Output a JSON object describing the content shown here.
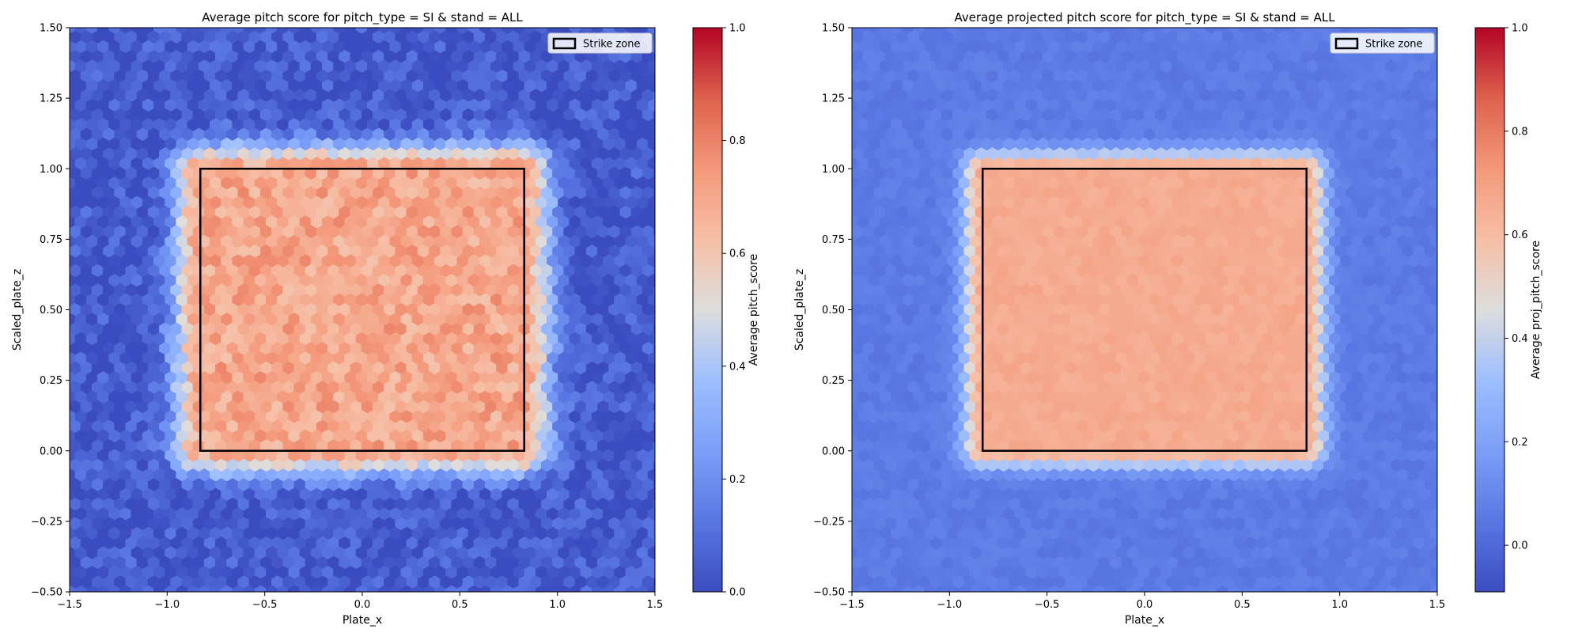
{
  "chart_data": [
    {
      "type": "heatmap",
      "style": "hexbin",
      "title": "Average pitch score for pitch_type = SI & stand = ALL",
      "xlabel": "Plate_x",
      "ylabel": "Scaled_plate_z",
      "xlim": [
        -1.5,
        1.5
      ],
      "ylim": [
        -0.5,
        1.5
      ],
      "xticks": [
        -1.5,
        -1.0,
        -0.5,
        0.0,
        0.5,
        1.0,
        1.5
      ],
      "xtick_labels": [
        "−1.5",
        "−1.0",
        "−0.5",
        "0.0",
        "0.5",
        "1.0",
        "1.5"
      ],
      "yticks": [
        -0.5,
        -0.25,
        0.0,
        0.25,
        0.5,
        0.75,
        1.0,
        1.25,
        1.5
      ],
      "ytick_labels": [
        "−0.50",
        "−0.25",
        "0.00",
        "0.25",
        "0.50",
        "0.75",
        "1.00",
        "1.25",
        "1.50"
      ],
      "colormap": "coolwarm",
      "colorbar": {
        "label": "Average pitch_score",
        "range": [
          0.0,
          1.0
        ],
        "ticks": [
          0.0,
          0.2,
          0.4,
          0.6,
          0.8,
          1.0
        ],
        "tick_labels": [
          "0.0",
          "0.2",
          "0.4",
          "0.6",
          "0.8",
          "1.0"
        ]
      },
      "strike_zone": {
        "x": [
          -0.83,
          0.83
        ],
        "z": [
          0.0,
          1.0
        ]
      },
      "legend": {
        "label": "Strike zone",
        "position": "top-right"
      },
      "value_model": {
        "inside_zone": 0.7,
        "far_outside": 0.04,
        "noise": 0.09,
        "transition_width": 0.1,
        "seed": 7
      }
    },
    {
      "type": "heatmap",
      "style": "hexbin",
      "title": "Average projected pitch score for pitch_type = SI & stand = ALL",
      "xlabel": "Plate_x",
      "ylabel": "Scaled_plate_z",
      "xlim": [
        -1.5,
        1.5
      ],
      "ylim": [
        -0.5,
        1.5
      ],
      "xticks": [
        -1.5,
        -1.0,
        -0.5,
        0.0,
        0.5,
        1.0,
        1.5
      ],
      "xtick_labels": [
        "−1.5",
        "−1.0",
        "−0.5",
        "0.0",
        "0.5",
        "1.0",
        "1.5"
      ],
      "yticks": [
        -0.5,
        -0.25,
        0.0,
        0.25,
        0.5,
        0.75,
        1.0,
        1.25,
        1.5
      ],
      "ytick_labels": [
        "−0.50",
        "−0.25",
        "0.00",
        "0.25",
        "0.50",
        "0.75",
        "1.00",
        "1.25",
        "1.50"
      ],
      "colormap": "coolwarm",
      "colorbar": {
        "label": "Average proj_pitch_score",
        "range": [
          -0.09,
          1.0
        ],
        "ticks": [
          0.0,
          0.2,
          0.4,
          0.6,
          0.8,
          1.0
        ],
        "tick_labels": [
          "0.0",
          "0.2",
          "0.4",
          "0.6",
          "0.8",
          "1.0"
        ]
      },
      "strike_zone": {
        "x": [
          -0.83,
          0.83
        ],
        "z": [
          0.0,
          1.0
        ]
      },
      "legend": {
        "label": "Strike zone",
        "position": "top-right"
      },
      "value_model": {
        "inside_zone": 0.66,
        "far_outside": 0.06,
        "noise": 0.025,
        "transition_width": 0.07,
        "seed": 11
      }
    }
  ]
}
